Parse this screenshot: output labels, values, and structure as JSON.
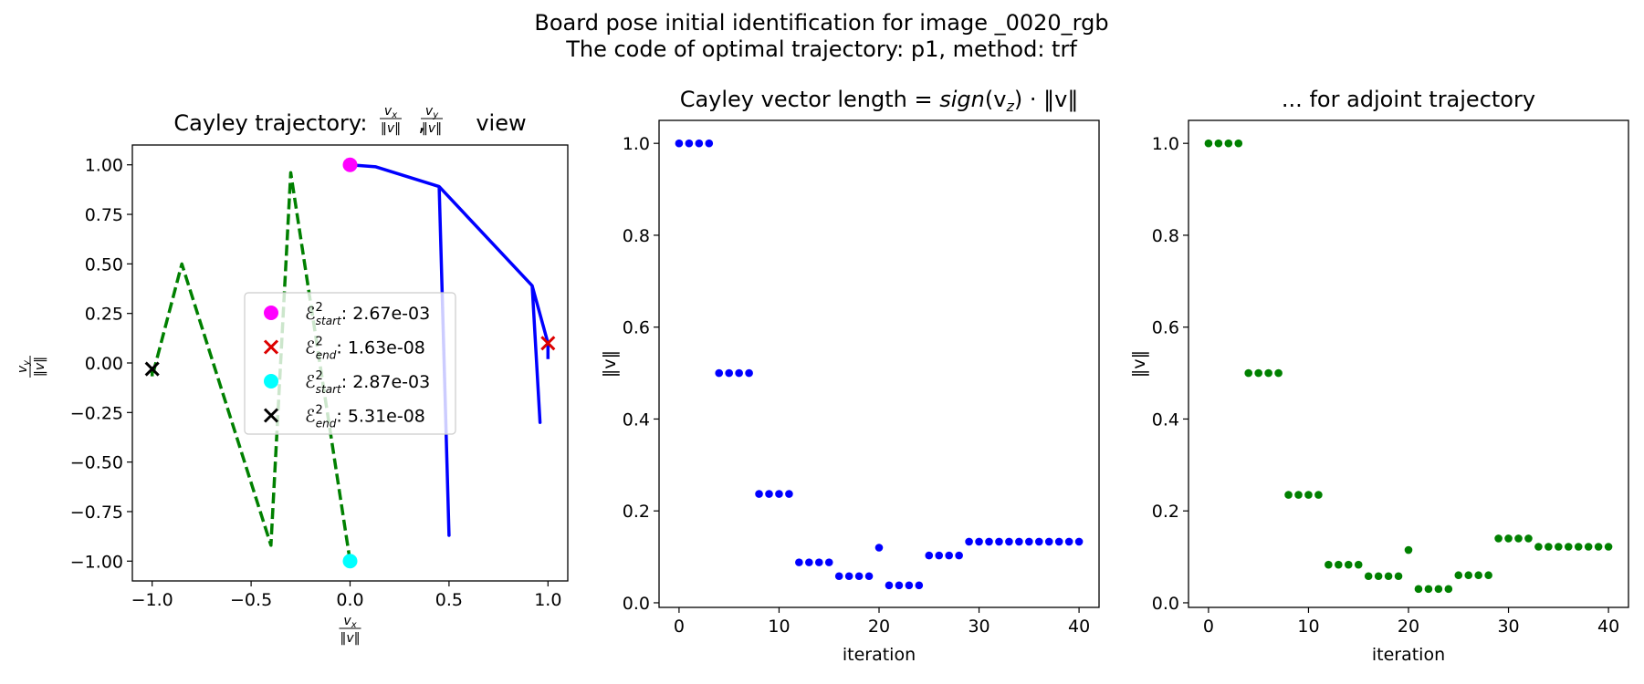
{
  "suptitle": [
    "Board pose initial identification for image _0020_rgb",
    "The code of optimal trajectory: p1, method: trf"
  ],
  "chart_data": [
    {
      "type": "line",
      "title": {
        "prefix": "Cayley trajectory: ",
        "suffix": " view"
      },
      "xlabel": "v_x / ||v||",
      "ylabel": "v_y / ||v||",
      "xlim": [
        -1.1,
        1.1
      ],
      "ylim": [
        -1.1,
        1.1
      ],
      "xticks": [
        -1.0,
        -0.5,
        0.0,
        0.5,
        1.0
      ],
      "xtick_labels": [
        "−1.0",
        "−0.5",
        "0.0",
        "0.5",
        "1.0"
      ],
      "yticks": [
        1.0,
        0.75,
        0.5,
        0.25,
        0.0,
        -0.25,
        -0.5,
        -0.75,
        -1.0
      ],
      "ytick_labels": [
        "1.00",
        "0.75",
        "0.50",
        "0.25",
        "0.00",
        "−0.25",
        "−0.50",
        "−0.75",
        "−1.00"
      ],
      "grid": false,
      "legend_position": "center-right",
      "series": [
        {
          "style": "solid",
          "color": "#0000ff",
          "points": [
            [
              0.0,
              1.0
            ],
            [
              0.13,
              0.99
            ],
            [
              0.45,
              0.89
            ],
            [
              0.5,
              -0.87
            ],
            [
              0.45,
              0.89
            ],
            [
              0.92,
              0.39
            ],
            [
              0.96,
              -0.3
            ],
            [
              0.92,
              0.39
            ],
            [
              1.0,
              0.1
            ],
            [
              1.0,
              0.02
            ]
          ]
        },
        {
          "style": "dashed",
          "color": "#008000",
          "points": [
            [
              0.0,
              -1.0
            ],
            [
              -0.3,
              0.96
            ],
            [
              -0.4,
              -0.92
            ],
            [
              -0.85,
              0.5
            ],
            [
              -1.0,
              -0.07
            ],
            [
              -1.0,
              -0.02
            ]
          ]
        }
      ],
      "markers": [
        {
          "shape": "circle",
          "color": "#ff00ff",
          "x": 0.0,
          "y": 1.0
        },
        {
          "shape": "x",
          "color": "#dd0000",
          "x": 1.0,
          "y": 0.1
        },
        {
          "shape": "circle",
          "color": "#00ffff",
          "x": 0.0,
          "y": -1.0
        },
        {
          "shape": "x",
          "color": "#000000",
          "x": -1.0,
          "y": -0.03
        }
      ],
      "legend": [
        {
          "marker": "circle",
          "color": "#ff00ff",
          "sym": "ℰ",
          "sup": "2",
          "sub": "start",
          "value": "2.67e-03"
        },
        {
          "marker": "x",
          "color": "#dd0000",
          "sym": "ℰ",
          "sup": "2",
          "sub": "end",
          "value": "1.63e-08"
        },
        {
          "marker": "circle",
          "color": "#00ffff",
          "sym": "ℰ",
          "sup": "2",
          "sub": "start",
          "value": "2.87e-03"
        },
        {
          "marker": "x",
          "color": "#000000",
          "sym": "ℰ",
          "sup": "2",
          "sub": "end",
          "value": "5.31e-08"
        }
      ]
    },
    {
      "type": "scatter",
      "title": {
        "prefix": "Cayley vector length = ",
        "func": "sign",
        "arg": "(v",
        "argsub": "z",
        "suffix": ") · ‖v‖"
      },
      "xlabel": "iteration",
      "ylabel": "‖v‖",
      "xlim": [
        -2,
        42
      ],
      "ylim": [
        -0.01,
        1.05
      ],
      "xticks": [
        0,
        10,
        20,
        30,
        40
      ],
      "yticks": [
        0.0,
        0.2,
        0.4,
        0.6,
        0.8,
        1.0
      ],
      "ytick_labels": [
        "0.0",
        "0.2",
        "0.4",
        "0.6",
        "0.8",
        "1.0"
      ],
      "grid": false,
      "color": "#0000ff",
      "x": [
        0,
        1,
        2,
        3,
        4,
        5,
        6,
        7,
        8,
        9,
        10,
        11,
        12,
        13,
        14,
        15,
        16,
        17,
        18,
        19,
        20,
        21,
        22,
        23,
        24,
        25,
        26,
        27,
        28,
        29,
        30,
        31,
        32,
        33,
        34,
        35,
        36,
        37,
        38,
        39,
        40
      ],
      "y": [
        1.0,
        1.0,
        1.0,
        1.0,
        0.5,
        0.5,
        0.5,
        0.5,
        0.237,
        0.237,
        0.237,
        0.237,
        0.088,
        0.088,
        0.088,
        0.088,
        0.058,
        0.058,
        0.058,
        0.058,
        0.12,
        0.038,
        0.038,
        0.038,
        0.038,
        0.103,
        0.103,
        0.103,
        0.103,
        0.133,
        0.133,
        0.133,
        0.133,
        0.133,
        0.133,
        0.133,
        0.133,
        0.133,
        0.133,
        0.133,
        0.133
      ]
    },
    {
      "type": "scatter",
      "title": {
        "prefix": "... for adjoint trajectory"
      },
      "xlabel": "iteration",
      "ylabel": "‖v‖",
      "xlim": [
        -2,
        42
      ],
      "ylim": [
        -0.01,
        1.05
      ],
      "xticks": [
        0,
        10,
        20,
        30,
        40
      ],
      "yticks": [
        0.0,
        0.2,
        0.4,
        0.6,
        0.8,
        1.0
      ],
      "ytick_labels": [
        "0.0",
        "0.2",
        "0.4",
        "0.6",
        "0.8",
        "1.0"
      ],
      "grid": false,
      "color": "#008000",
      "x": [
        0,
        1,
        2,
        3,
        4,
        5,
        6,
        7,
        8,
        9,
        10,
        11,
        12,
        13,
        14,
        15,
        16,
        17,
        18,
        19,
        20,
        21,
        22,
        23,
        24,
        25,
        26,
        27,
        28,
        29,
        30,
        31,
        32,
        33,
        34,
        35,
        36,
        37,
        38,
        39,
        40
      ],
      "y": [
        1.0,
        1.0,
        1.0,
        1.0,
        0.5,
        0.5,
        0.5,
        0.5,
        0.235,
        0.235,
        0.235,
        0.235,
        0.083,
        0.083,
        0.083,
        0.083,
        0.058,
        0.058,
        0.058,
        0.058,
        0.115,
        0.03,
        0.03,
        0.03,
        0.03,
        0.06,
        0.06,
        0.06,
        0.06,
        0.14,
        0.14,
        0.14,
        0.14,
        0.122,
        0.122,
        0.122,
        0.122,
        0.122,
        0.122,
        0.122,
        0.122
      ]
    }
  ]
}
